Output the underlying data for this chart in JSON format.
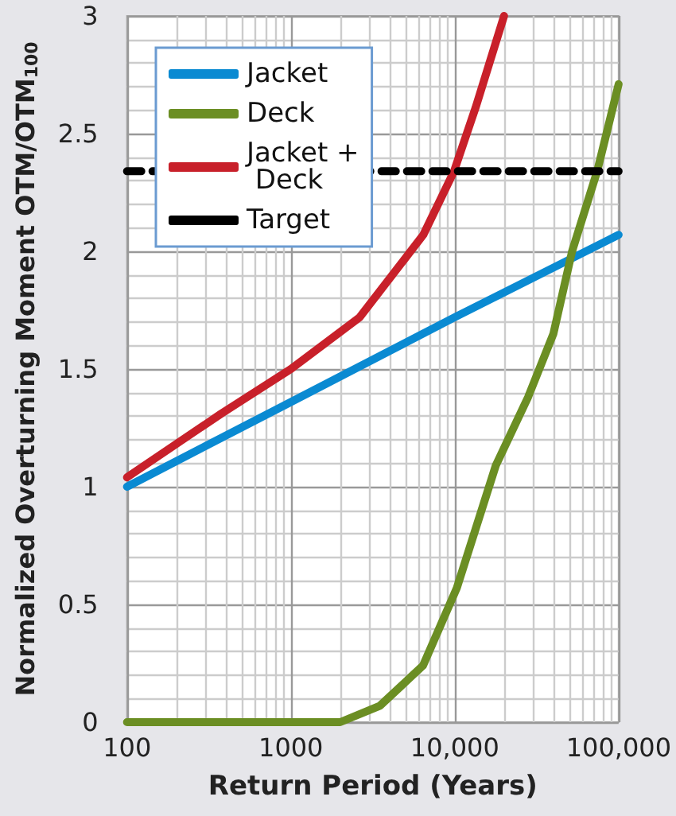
{
  "chart_data": {
    "type": "line",
    "xlabel": "Return Period (Years)",
    "ylabel": "Normalized Overturning Moment OTM/OTM$_{100}$",
    "log": "x",
    "xlim": [
      100,
      100000
    ],
    "xticks": [
      100,
      1000,
      {
        "value": 10000,
        "label": "10,000"
      },
      {
        "value": 100000,
        "label": "100,000"
      }
    ],
    "ylim": [
      0,
      3
    ],
    "yticks": [
      0,
      0.5,
      1,
      1.5,
      2,
      2.5,
      3
    ],
    "grid": true,
    "legend": "top left",
    "marker": "none",
    "line_style": "solid",
    "series": [
      {
        "name": "Jacket",
        "color": "#0a8ad2",
        "x": [
          100,
          1000,
          10000,
          100000
        ],
        "values": [
          1.0,
          1.36,
          1.72,
          2.07
        ]
      },
      {
        "name": "Deck",
        "color": "#6b8e23",
        "x": [
          100,
          2000,
          3500,
          6400,
          10300,
          17800,
          28000,
          40000,
          52000,
          74000,
          100000
        ],
        "values": [
          0,
          0,
          0.07,
          0.24,
          0.57,
          1.09,
          1.38,
          1.65,
          2.0,
          2.34,
          2.71
        ]
      },
      {
        "name": "Jacket + Deck",
        "color": "#c8202a",
        "x": [
          100,
          375,
          1000,
          2630,
          6430,
          9900,
          13400,
          20000
        ],
        "values": [
          1.04,
          1.31,
          1.5,
          1.72,
          2.07,
          2.34,
          2.61,
          3.0
        ]
      },
      {
        "name": "Target",
        "color": "#000000",
        "line_style": "dashed",
        "x": [
          100,
          100000
        ],
        "values": [
          2.34,
          2.34
        ]
      }
    ]
  }
}
